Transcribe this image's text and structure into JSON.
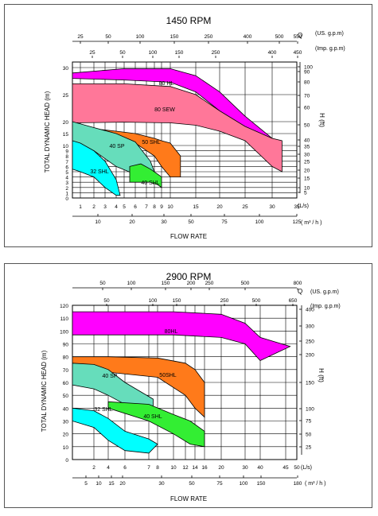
{
  "charts": [
    {
      "rpm_title": "1450 RPM",
      "ylabel": "TOTAL DYNAMIC HEAD  (m)",
      "xlabel": "FLOW RATE",
      "y_ticks": [
        "0",
        "1",
        "2",
        "3",
        "4",
        "5",
        "6",
        "7",
        "8",
        "9",
        "10",
        "15",
        "20",
        "25",
        "30"
      ],
      "ft_label": "H (ft)",
      "ft_ticks": [
        "5",
        "10",
        "15",
        "20",
        "25",
        "30",
        "35",
        "40",
        "50",
        "60",
        "70",
        "80",
        "90",
        "100"
      ],
      "q_label": "Q",
      "usgpm_unit": "(US. g.p.m)",
      "usgpm_ticks": [
        "25",
        "50",
        "100",
        "150",
        "250",
        "400",
        "500",
        "550"
      ],
      "impgpm_unit": "(Imp. g.p.m)",
      "impgpm_ticks": [
        "25",
        "50",
        "100",
        "150",
        "250",
        "400",
        "450"
      ],
      "ls_unit": "(L/s)",
      "ls_ticks": [
        "1",
        "2",
        "3",
        "4",
        "5",
        "6",
        "7",
        "8",
        "9",
        "10",
        "15",
        "20",
        "25",
        "30",
        "35"
      ],
      "m3h_unit": "( m³ / h )",
      "m3h_ticks": [
        "10",
        "20",
        "30",
        "50",
        "75",
        "100",
        "125"
      ],
      "curve_labels": [
        "80 HL",
        "80 SEW",
        "50 SHL",
        "40 SP",
        "32 SHL",
        "40 SHL"
      ]
    },
    {
      "rpm_title": "2900 RPM",
      "ylabel": "TOTAL DYNAMIC HEAD  (m)",
      "xlabel": "FLOW RATE",
      "y_ticks": [
        "0",
        "10",
        "20",
        "30",
        "40",
        "50",
        "60",
        "70",
        "80",
        "90",
        "100",
        "110",
        "120"
      ],
      "ft_label": "H (ft)",
      "ft_ticks": [
        "25",
        "50",
        "75",
        "100",
        "150",
        "200",
        "250",
        "300",
        "400"
      ],
      "q_label": "Q",
      "usgpm_unit": "(US. g.p.m)",
      "usgpm_ticks": [
        "50",
        "100",
        "150",
        "200",
        "250",
        "500",
        "800"
      ],
      "impgpm_unit": "(Imp. g.p.m)",
      "impgpm_ticks": [
        "50",
        "100",
        "150",
        "250",
        "500",
        "650"
      ],
      "ls_unit": "(L/s)",
      "ls_ticks": [
        "2",
        "4",
        "6",
        "7",
        "8",
        "10",
        "12",
        "14",
        "16",
        "20",
        "30",
        "40",
        "45",
        "50"
      ],
      "m3h_unit": "( m³ / h )",
      "m3h_ticks": [
        "5",
        "10",
        "15",
        "20",
        "30",
        "50",
        "75",
        "100",
        "150",
        "180"
      ],
      "curve_labels": [
        "80HL",
        "50SHL",
        "40 SP",
        "32 SHL",
        "40 SHL"
      ]
    }
  ],
  "colors": {
    "magenta": "#ff00ff",
    "pink": "#ff7799",
    "orange": "#ff7a1a",
    "teal": "#66ddbb",
    "cyan": "#00ffff",
    "green": "#33ee33",
    "outline": "#000000"
  },
  "chart_data": [
    {
      "type": "area",
      "x_unit": "L/s",
      "y_unit": "m",
      "ylim": [
        0,
        30
      ],
      "xlim": [
        0,
        35
      ],
      "series": [
        {
          "name": "80 HL",
          "x": [
            0,
            5,
            10,
            15,
            20,
            25,
            30,
            32
          ],
          "y_max": [
            29,
            29.8,
            29.8,
            28.5,
            25.5,
            21,
            13,
            6
          ],
          "y_min": [
            28,
            27.7,
            27.3,
            25.5,
            22,
            16,
            7,
            6
          ]
        },
        {
          "name": "80 SEW",
          "x": [
            0,
            5,
            10,
            15,
            20,
            25,
            30,
            32
          ],
          "y_max": [
            27,
            27,
            26.5,
            25,
            22,
            18,
            13,
            12
          ],
          "y_min": [
            19.5,
            19.8,
            19.5,
            18.5,
            16,
            12,
            6,
            5
          ]
        },
        {
          "name": "50 SHL",
          "x": [
            0,
            2,
            4,
            6,
            8,
            9,
            10,
            12
          ],
          "y_max": [
            17,
            17,
            16,
            15,
            13,
            12,
            11,
            8
          ],
          "y_min": [
            15,
            14,
            12.5,
            11,
            8,
            6,
            4,
            4
          ]
        },
        {
          "name": "40 SP",
          "x": [
            0,
            2,
            4,
            6,
            7.5,
            8
          ],
          "y_max": [
            20,
            17.5,
            15,
            11.5,
            7,
            5
          ],
          "y_min": [
            11,
            9,
            6,
            4.5,
            4,
            4
          ]
        },
        {
          "name": "32 SHL",
          "x": [
            0,
            1,
            2,
            3,
            4,
            4.5
          ],
          "y_max": [
            12,
            11,
            9,
            7,
            3.5,
            0.5
          ],
          "y_min": [
            5.5,
            5,
            4,
            2,
            0.5,
            0.5
          ]
        },
        {
          "name": "40 SHL",
          "x": [
            5.5,
            6.5,
            7.5,
            8.5,
            9
          ],
          "y_max": [
            6,
            6.5,
            5.5,
            4.5,
            4
          ],
          "y_min": [
            3,
            3,
            3,
            2.5,
            2
          ]
        }
      ]
    },
    {
      "type": "area",
      "x_unit": "L/s",
      "y_unit": "m",
      "ylim": [
        0,
        120
      ],
      "xlim": [
        0,
        50
      ],
      "series": [
        {
          "name": "80HL",
          "x": [
            0,
            10,
            20,
            30,
            40,
            47
          ],
          "y_max": [
            115,
            115,
            113,
            106,
            95,
            88
          ],
          "y_min": [
            97,
            97,
            95,
            90,
            77,
            88
          ]
        },
        {
          "name": "50SHL",
          "x": [
            0,
            4,
            8,
            12,
            14,
            16
          ],
          "y_max": [
            80,
            80,
            79,
            75,
            70,
            60
          ],
          "y_min": [
            70,
            68,
            64,
            50,
            40,
            33
          ]
        },
        {
          "name": "40 SP",
          "x": [
            0,
            2,
            4,
            6,
            7.5
          ],
          "y_max": [
            75,
            74,
            70,
            60,
            47
          ],
          "y_min": [
            58,
            55,
            50,
            43,
            40
          ]
        },
        {
          "name": "32 SHL",
          "x": [
            0,
            2,
            4,
            6,
            7,
            8
          ],
          "y_max": [
            40,
            38,
            32,
            22,
            16,
            12
          ],
          "y_min": [
            30,
            25,
            15,
            7,
            5,
            12
          ]
        },
        {
          "name": "40 SHL",
          "x": [
            4,
            7,
            10,
            13,
            16
          ],
          "y_max": [
            45,
            43,
            35,
            30,
            22
          ],
          "y_min": [
            40,
            30,
            20,
            12,
            10
          ]
        }
      ]
    }
  ]
}
